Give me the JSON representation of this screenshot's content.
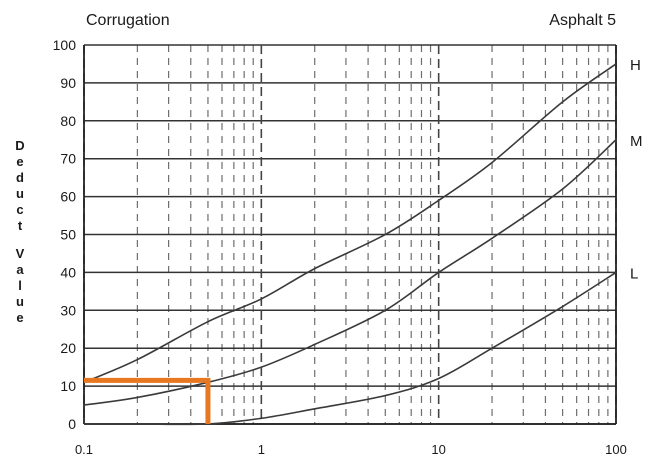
{
  "title": "Corrugation",
  "subtitle": "Asphalt 5",
  "chart_data": {
    "type": "line",
    "title": "Corrugation",
    "subtitle": "Asphalt 5",
    "ylabel": "Deduct Value",
    "xlabel": "",
    "x_scale": "log",
    "xlim": [
      0.1,
      100
    ],
    "ylim": [
      0,
      100
    ],
    "x_ticks": [
      "0.1",
      "1",
      "10",
      "100"
    ],
    "y_ticks": [
      "0",
      "10",
      "20",
      "30",
      "40",
      "50",
      "60",
      "70",
      "80",
      "90",
      "100"
    ],
    "grid": true,
    "series": [
      {
        "name": "H",
        "color": "#3a3a3a",
        "x": [
          0.1,
          0.2,
          0.5,
          1,
          2,
          5,
          10,
          20,
          50,
          100
        ],
        "y": [
          11,
          17,
          27,
          33,
          41,
          50,
          59,
          69,
          85,
          95
        ]
      },
      {
        "name": "M",
        "color": "#3a3a3a",
        "x": [
          0.1,
          0.2,
          0.5,
          1,
          2,
          5,
          10,
          20,
          50,
          100
        ],
        "y": [
          5,
          7,
          11,
          15,
          21,
          30,
          40,
          49,
          62,
          75
        ]
      },
      {
        "name": "L",
        "color": "#3a3a3a",
        "x": [
          0.1,
          0.2,
          0.5,
          1,
          2,
          5,
          10,
          20,
          50,
          100
        ],
        "y": [
          0,
          0,
          0,
          1.5,
          4,
          7.5,
          12,
          20,
          31,
          40
        ]
      }
    ],
    "annotations": [
      {
        "type": "reading-guide",
        "color": "#e87722",
        "points": [
          [
            0.1,
            11.5
          ],
          [
            0.5,
            11.5
          ],
          [
            0.5,
            0
          ]
        ]
      }
    ]
  }
}
